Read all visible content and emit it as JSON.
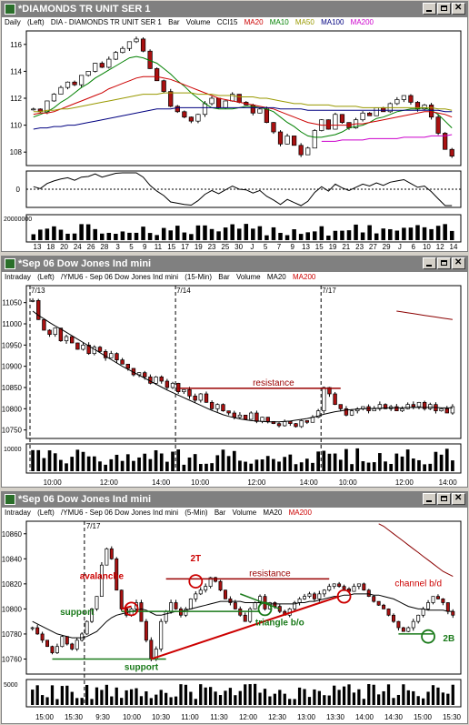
{
  "windows": [
    {
      "title": "*DIAMONDS TR UNIT SER 1",
      "info": [
        "Daily",
        "(Left)",
        "DIA - DIAMONDS TR UNIT SER 1",
        "Bar",
        "Volume",
        "CCI15"
      ],
      "info_ma": [
        {
          "label": "MA20",
          "color": "#cc0000"
        },
        {
          "label": "MA10",
          "color": "#008000"
        },
        {
          "label": "MA50",
          "color": "#999900"
        },
        {
          "label": "MA100",
          "color": "#000080"
        },
        {
          "label": "MA200",
          "color": "#cc00cc"
        }
      ]
    },
    {
      "title": "*Sep 06  Dow Jones Ind mini",
      "info": [
        "Intraday",
        "(Left)",
        "/YMU6 - Sep 06  Dow Jones Ind mini",
        "(15-Min)",
        "Bar",
        "Volume",
        "MA20"
      ],
      "info_ma": [
        {
          "label": "MA200",
          "color": "#cc0000"
        }
      ]
    },
    {
      "title": "*Sep 06  Dow Jones Ind mini",
      "info": [
        "Intraday",
        "(Left)",
        "/YMU6 - Sep 06  Dow Jones Ind mini",
        "(5-Min)",
        "Bar",
        "Volume",
        "MA20"
      ],
      "info_ma": [
        {
          "label": "MA200",
          "color": "#cc0000"
        }
      ]
    }
  ],
  "colors": {
    "up": "#ffffff",
    "down": "#aa1111",
    "ma20": "#000000",
    "ma200": "#8b0000",
    "support": "#1a7a1a",
    "resistance": "#990000",
    "annotation_red": "#cc0000",
    "annotation_green": "#1a7a1a"
  },
  "chart_data": [
    {
      "type": "candlestick",
      "ylim": [
        107,
        117
      ],
      "y_ticks": [
        108,
        110,
        112,
        114,
        116
      ],
      "x_tick_labels": [
        "13",
        "18",
        "20",
        "24",
        "26",
        "28",
        "3",
        "5",
        "9",
        "11",
        "15",
        "17",
        "19",
        "23",
        "25",
        "30",
        "J",
        "5",
        "7",
        "9",
        "13",
        "15",
        "19",
        "21",
        "23",
        "27",
        "29",
        "J",
        "6",
        "10",
        "12",
        "14"
      ],
      "close": [
        111.2,
        111.0,
        111.8,
        112.3,
        112.8,
        113.2,
        113.0,
        113.7,
        114.0,
        114.6,
        114.3,
        114.9,
        115.4,
        115.7,
        116.2,
        116.4,
        115.5,
        114.2,
        113.3,
        112.5,
        111.4,
        111.0,
        110.6,
        110.3,
        110.8,
        111.6,
        112.0,
        111.3,
        111.8,
        112.3,
        111.7,
        111.5,
        110.9,
        111.2,
        110.2,
        109.5,
        108.6,
        109.2,
        108.5,
        107.8,
        108.3,
        109.6,
        110.4,
        109.7,
        110.8,
        110.2,
        109.8,
        110.4,
        110.9,
        110.7,
        111.3,
        111.0,
        111.6,
        111.9,
        112.2,
        111.7,
        111.2,
        111.5,
        110.6,
        109.4,
        108.2,
        107.7
      ],
      "moving_averages": {
        "MA10": [
          110.6,
          110.8,
          111.0,
          111.3,
          111.7,
          112.0,
          112.4,
          112.8,
          113.1,
          113.5,
          113.8,
          114.1,
          114.4,
          114.7,
          115.0,
          115.1,
          115.0,
          114.8,
          114.6,
          114.2,
          113.8,
          113.3,
          112.9,
          112.4,
          112.0,
          111.6,
          111.3,
          111.2,
          111.2,
          111.2,
          111.3,
          111.4,
          111.4,
          111.3,
          111.2,
          111.0,
          110.6,
          110.2,
          109.9,
          109.5,
          109.2,
          109.1,
          109.1,
          109.2,
          109.3,
          109.5,
          109.8,
          109.9,
          110.0,
          110.2,
          110.5,
          110.6,
          110.8,
          111.0,
          111.1,
          111.2,
          111.2,
          111.3,
          111.1,
          110.8,
          110.3,
          109.8
        ],
        "MA20": [
          110.8,
          110.9,
          110.9,
          111.0,
          111.2,
          111.4,
          111.6,
          111.8,
          112.0,
          112.2,
          112.4,
          112.7,
          112.9,
          113.1,
          113.3,
          113.5,
          113.6,
          113.6,
          113.6,
          113.5,
          113.4,
          113.2,
          113.0,
          112.8,
          112.6,
          112.4,
          112.2,
          112.0,
          111.9,
          111.8,
          111.7,
          111.6,
          111.5,
          111.4,
          111.3,
          111.2,
          111.0,
          110.8,
          110.6,
          110.4,
          110.2,
          110.1,
          110.0,
          110.0,
          110.0,
          110.0,
          110.0,
          110.1,
          110.1,
          110.2,
          110.3,
          110.4,
          110.5,
          110.6,
          110.7,
          110.8,
          110.9,
          111.0,
          111.0,
          110.9,
          110.8,
          110.6
        ],
        "MA50": [
          111.0,
          111.0,
          111.1,
          111.1,
          111.2,
          111.2,
          111.3,
          111.4,
          111.5,
          111.6,
          111.7,
          111.8,
          111.9,
          112.0,
          112.1,
          112.2,
          112.3,
          112.3,
          112.3,
          112.4,
          112.4,
          112.4,
          112.4,
          112.4,
          112.3,
          112.3,
          112.3,
          112.2,
          112.2,
          112.2,
          112.1,
          112.1,
          112.1,
          112.0,
          112.0,
          111.9,
          111.8,
          111.7,
          111.6,
          111.6,
          111.5,
          111.5,
          111.5,
          111.5,
          111.4,
          111.4,
          111.4,
          111.4,
          111.3,
          111.3,
          111.3,
          111.3,
          111.3,
          111.3,
          111.3,
          111.3,
          111.3,
          111.3,
          111.3,
          111.2,
          111.2,
          111.1
        ],
        "MA100": [
          109.7,
          109.8,
          109.8,
          109.9,
          109.9,
          110.0,
          110.0,
          110.1,
          110.2,
          110.3,
          110.4,
          110.5,
          110.6,
          110.7,
          110.8,
          110.9,
          111.0,
          111.1,
          111.2,
          111.2,
          111.2,
          111.3,
          111.3,
          111.3,
          111.3,
          111.3,
          111.3,
          111.3,
          111.3,
          111.3,
          111.3,
          111.3,
          111.3,
          111.3,
          111.3,
          111.3,
          111.2,
          111.2,
          111.2,
          111.2,
          111.1,
          111.1,
          111.1,
          111.1,
          111.1,
          111.1,
          111.1,
          111.1,
          111.1,
          111.1,
          111.1,
          111.1,
          111.1,
          111.1,
          111.1,
          111.1,
          111.1,
          111.1,
          111.1,
          111.1,
          111.0,
          111.0
        ],
        "MA200": [
          null,
          null,
          null,
          null,
          null,
          null,
          null,
          null,
          null,
          null,
          null,
          null,
          null,
          null,
          null,
          null,
          null,
          null,
          null,
          null,
          null,
          null,
          null,
          null,
          null,
          null,
          null,
          null,
          null,
          null,
          null,
          null,
          null,
          null,
          null,
          null,
          null,
          null,
          null,
          null,
          null,
          null,
          108.8,
          108.8,
          108.8,
          108.9,
          108.9,
          108.9,
          108.9,
          109.0,
          109.0,
          109.0,
          109.0,
          109.0,
          109.1,
          109.1,
          109.1,
          109.1,
          109.2,
          109.2,
          109.2,
          109.3
        ]
      },
      "cci_zero_label": "0",
      "volume_axis_label": "20000000"
    },
    {
      "type": "candlestick",
      "ylim": [
        10730,
        11090
      ],
      "y_ticks": [
        10750,
        10800,
        10850,
        10900,
        10950,
        11000,
        11050
      ],
      "x_tick_labels": [
        "10:00",
        "12:00",
        "14:00",
        "10:00",
        "12:00",
        "14:00",
        "10:00",
        "12:00",
        "14:00"
      ],
      "session_labels": [
        "7/13",
        "7/14",
        "7/17"
      ],
      "close": [
        11055,
        11010,
        10985,
        10975,
        10990,
        10960,
        10970,
        10955,
        10940,
        10950,
        10930,
        10945,
        10935,
        10920,
        10930,
        10915,
        10905,
        10895,
        10880,
        10885,
        10875,
        10860,
        10875,
        10865,
        10850,
        10860,
        10840,
        10845,
        10830,
        10820,
        10835,
        10815,
        10800,
        10810,
        10795,
        10790,
        10780,
        10785,
        10775,
        10790,
        10770,
        10780,
        10770,
        10765,
        10760,
        10770,
        10765,
        10758,
        10772,
        10768,
        10780,
        10795,
        10850,
        10835,
        10810,
        10800,
        10785,
        10795,
        10800,
        10805,
        10795,
        10800,
        10810,
        10800,
        10805,
        10795,
        10800,
        10810,
        10805,
        10815,
        10800,
        10810,
        10795,
        10800,
        10790,
        10805
      ],
      "ma20": [
        11030,
        11020,
        11012,
        11003,
        10995,
        10988,
        10980,
        10972,
        10964,
        10956,
        10948,
        10940,
        10932,
        10924,
        10916,
        10908,
        10900,
        10893,
        10886,
        10879,
        10872,
        10865,
        10858,
        10851,
        10844,
        10838,
        10832,
        10826,
        10820,
        10814,
        10808,
        10802,
        10796,
        10791,
        10786,
        10782,
        10779,
        10776,
        10774,
        10772,
        10771,
        10770,
        10769,
        10769,
        10769,
        10770,
        10771,
        10773,
        10775,
        10777,
        10780,
        10783,
        10787,
        10790,
        10793,
        10795,
        10797,
        10798,
        10799,
        10800,
        10800,
        10801,
        10801,
        10802,
        10802,
        10802,
        10802,
        10803,
        10803,
        10803,
        10803,
        10803,
        10803,
        10802,
        10802,
        10802
      ],
      "ma200_segment": [
        11030,
        11028,
        11026,
        11024,
        11022,
        11020,
        11018,
        11016,
        11014,
        11012,
        11010
      ],
      "resistance": {
        "label": "resistance",
        "value": 10848
      },
      "volume_axis_label": "10000"
    },
    {
      "type": "candlestick",
      "ylim": [
        10748,
        10870
      ],
      "y_ticks": [
        10760,
        10780,
        10800,
        10820,
        10840,
        10860
      ],
      "x_tick_labels": [
        "15:00",
        "15:30",
        "9:30",
        "10:00",
        "10:30",
        "11:00",
        "11:30",
        "12:00",
        "12:30",
        "13:00",
        "13:30",
        "14:00",
        "14:30",
        "15:00",
        "15:30"
      ],
      "session_labels": [
        "7/17"
      ],
      "close": [
        10785,
        10780,
        10775,
        10770,
        10765,
        10770,
        10778,
        10772,
        10768,
        10775,
        10780,
        10790,
        10800,
        10810,
        10835,
        10848,
        10840,
        10815,
        10800,
        10795,
        10800,
        10805,
        10790,
        10775,
        10760,
        10768,
        10790,
        10798,
        10805,
        10800,
        10795,
        10800,
        10808,
        10812,
        10815,
        10818,
        10825,
        10822,
        10815,
        10808,
        10805,
        10800,
        10795,
        10790,
        10800,
        10805,
        10810,
        10800,
        10805,
        10802,
        10798,
        10795,
        10800,
        10805,
        10808,
        10810,
        10812,
        10808,
        10812,
        10815,
        10818,
        10820,
        10818,
        10816,
        10814,
        10818,
        10820,
        10815,
        10810,
        10806,
        10803,
        10800,
        10795,
        10790,
        10785,
        10782,
        10785,
        10790,
        10795,
        10800,
        10805,
        10810,
        10808,
        10805,
        10798,
        10795
      ],
      "ma20": [
        10790,
        10788,
        10786,
        10784,
        10782,
        10780,
        10779,
        10778,
        10777,
        10777,
        10777,
        10778,
        10780,
        10782,
        10786,
        10790,
        10793,
        10795,
        10796,
        10797,
        10798,
        10799,
        10800,
        10799,
        10797,
        10795,
        10795,
        10796,
        10797,
        10798,
        10798,
        10799,
        10800,
        10801,
        10802,
        10803,
        10804,
        10805,
        10806,
        10806,
        10806,
        10806,
        10806,
        10805,
        10805,
        10805,
        10805,
        10805,
        10804,
        10804,
        10804,
        10804,
        10804,
        10804,
        10805,
        10805,
        10806,
        10806,
        10807,
        10808,
        10809,
        10810,
        10810,
        10811,
        10811,
        10812,
        10812,
        10812,
        10812,
        10811,
        10811,
        10810,
        10809,
        10808,
        10806,
        10804,
        10802,
        10801,
        10800,
        10800,
        10799,
        10799,
        10799,
        10799,
        10798,
        10798
      ],
      "ma200_segment": [
        10868,
        10866,
        10863,
        10860,
        10857,
        10854,
        10851,
        10848,
        10845,
        10842,
        10839,
        10836,
        10833,
        10830,
        10828,
        10826
      ],
      "annotations": {
        "avalanche": "avalanche",
        "two_t": "2T",
        "resistance": "resistance",
        "channel": "channel b/d",
        "support_upper": "support",
        "support_lower": "support",
        "triangle": "triangle b/o",
        "two_b": "2B"
      },
      "levels": {
        "resistance": 10824,
        "support_mid": 10798,
        "support_low": 10760,
        "support_2b": 10780
      },
      "volume_axis_label": "5000"
    }
  ]
}
